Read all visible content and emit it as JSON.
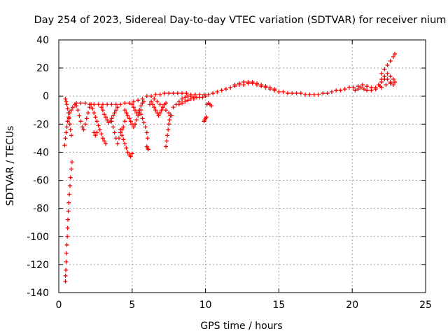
{
  "chart_data": {
    "type": "scatter",
    "title": "Day 254 of 2023, Sidereal Day-to-day VTEC variation (SDTVAR) for receiver nium",
    "xlabel": "GPS time / hours",
    "ylabel": "SDTVAR / TECUs",
    "xlim": [
      0,
      25
    ],
    "ylim": [
      -140,
      40
    ],
    "xticks": [
      0,
      5,
      10,
      15,
      20,
      25
    ],
    "yticks": [
      -140,
      -120,
      -100,
      -80,
      -60,
      -40,
      -20,
      0,
      20,
      40
    ],
    "grid": true,
    "marker": "+",
    "series": [
      {
        "name": "SDTVAR",
        "color": "#ff0000",
        "points": [
          [
            0.45,
            -132
          ],
          [
            0.46,
            -128
          ],
          [
            0.48,
            -124
          ],
          [
            0.5,
            -118
          ],
          [
            0.52,
            -112
          ],
          [
            0.55,
            -106
          ],
          [
            0.58,
            -100
          ],
          [
            0.6,
            -94
          ],
          [
            0.62,
            -88
          ],
          [
            0.65,
            -82
          ],
          [
            0.68,
            -76
          ],
          [
            0.72,
            -70
          ],
          [
            0.76,
            -64
          ],
          [
            0.8,
            -58
          ],
          [
            0.85,
            -52
          ],
          [
            0.9,
            -47
          ],
          [
            0.4,
            -35
          ],
          [
            0.45,
            -30
          ],
          [
            0.5,
            -26
          ],
          [
            0.55,
            -22
          ],
          [
            0.6,
            -18
          ],
          [
            0.68,
            -15
          ],
          [
            0.75,
            -12
          ],
          [
            0.85,
            -10
          ],
          [
            0.95,
            -8
          ],
          [
            0.45,
            -2
          ],
          [
            0.5,
            -4
          ],
          [
            0.55,
            -6
          ],
          [
            0.6,
            -9
          ],
          [
            0.65,
            -12
          ],
          [
            0.7,
            -16
          ],
          [
            0.75,
            -20
          ],
          [
            0.8,
            -24
          ],
          [
            0.85,
            -28
          ],
          [
            1.1,
            -6
          ],
          [
            1.2,
            -7
          ],
          [
            1.3,
            -10
          ],
          [
            1.4,
            -14
          ],
          [
            1.5,
            -18
          ],
          [
            1.6,
            -22
          ],
          [
            1.7,
            -24
          ],
          [
            1.8,
            -20
          ],
          [
            1.9,
            -16
          ],
          [
            2.0,
            -12
          ],
          [
            2.1,
            -8
          ],
          [
            1.2,
            -5
          ],
          [
            1.5,
            -5
          ],
          [
            1.8,
            -5
          ],
          [
            2.1,
            -6
          ],
          [
            2.4,
            -6
          ],
          [
            2.7,
            -6
          ],
          [
            3.0,
            -6
          ],
          [
            3.3,
            -6
          ],
          [
            3.6,
            -6
          ],
          [
            3.9,
            -6
          ],
          [
            4.2,
            -6
          ],
          [
            4.5,
            -5
          ],
          [
            4.8,
            -5
          ],
          [
            5.1,
            -4
          ],
          [
            5.4,
            -3
          ],
          [
            5.7,
            -2
          ],
          [
            2.2,
            -6
          ],
          [
            2.3,
            -9
          ],
          [
            2.4,
            -12
          ],
          [
            2.5,
            -15
          ],
          [
            2.6,
            -18
          ],
          [
            2.7,
            -21
          ],
          [
            2.8,
            -24
          ],
          [
            2.9,
            -27
          ],
          [
            3.0,
            -30
          ],
          [
            3.1,
            -32
          ],
          [
            3.2,
            -34
          ],
          [
            2.4,
            -26
          ],
          [
            2.5,
            -28
          ],
          [
            2.6,
            -26
          ],
          [
            2.9,
            -8
          ],
          [
            3.0,
            -10
          ],
          [
            3.1,
            -13
          ],
          [
            3.2,
            -15
          ],
          [
            3.3,
            -17
          ],
          [
            3.4,
            -19
          ],
          [
            3.5,
            -18
          ],
          [
            3.6,
            -16
          ],
          [
            3.7,
            -14
          ],
          [
            3.8,
            -12
          ],
          [
            3.9,
            -10
          ],
          [
            4.0,
            -8
          ],
          [
            3.6,
            -18
          ],
          [
            3.7,
            -22
          ],
          [
            3.8,
            -26
          ],
          [
            3.9,
            -30
          ],
          [
            4.0,
            -34
          ],
          [
            4.1,
            -30
          ],
          [
            4.2,
            -26
          ],
          [
            4.3,
            -24
          ],
          [
            4.4,
            -22
          ],
          [
            4.5,
            -18
          ],
          [
            4.2,
            -24
          ],
          [
            4.3,
            -28
          ],
          [
            4.4,
            -31
          ],
          [
            4.5,
            -34
          ],
          [
            4.6,
            -37
          ],
          [
            4.7,
            -40
          ],
          [
            4.8,
            -42
          ],
          [
            4.9,
            -43
          ],
          [
            5.0,
            -41
          ],
          [
            4.5,
            -10
          ],
          [
            4.6,
            -12
          ],
          [
            4.7,
            -14
          ],
          [
            4.8,
            -16
          ],
          [
            4.9,
            -18
          ],
          [
            5.0,
            -20
          ],
          [
            5.1,
            -22
          ],
          [
            5.2,
            -20
          ],
          [
            5.3,
            -17
          ],
          [
            5.4,
            -14
          ],
          [
            5.5,
            -12
          ],
          [
            5.6,
            -10
          ],
          [
            5.5,
            -10
          ],
          [
            5.6,
            -13
          ],
          [
            5.7,
            -16
          ],
          [
            5.8,
            -19
          ],
          [
            5.9,
            -22
          ],
          [
            6.0,
            -26
          ],
          [
            6.05,
            -30
          ],
          [
            5.0,
            -6
          ],
          [
            5.1,
            -8
          ],
          [
            5.2,
            -10
          ],
          [
            5.3,
            -12
          ],
          [
            5.4,
            -12
          ],
          [
            5.5,
            -10
          ],
          [
            5.6,
            -7
          ],
          [
            5.7,
            -5
          ],
          [
            5.8,
            -4
          ],
          [
            6.0,
            -36
          ],
          [
            6.05,
            -37
          ],
          [
            6.1,
            -38
          ],
          [
            6.2,
            -6
          ],
          [
            6.3,
            -4
          ],
          [
            6.4,
            -6
          ],
          [
            6.5,
            -8
          ],
          [
            6.6,
            -10
          ],
          [
            6.7,
            -12
          ],
          [
            6.8,
            -14
          ],
          [
            6.9,
            -12
          ],
          [
            7.0,
            -10
          ],
          [
            7.1,
            -8
          ],
          [
            7.2,
            -6
          ],
          [
            7.3,
            -5
          ],
          [
            6.5,
            -2
          ],
          [
            6.7,
            -4
          ],
          [
            6.9,
            -6
          ],
          [
            7.1,
            -8
          ],
          [
            7.3,
            -10
          ],
          [
            7.5,
            -12
          ],
          [
            7.7,
            -14
          ],
          [
            7.3,
            -36
          ],
          [
            7.35,
            -32
          ],
          [
            7.4,
            -28
          ],
          [
            7.45,
            -24
          ],
          [
            7.5,
            -20
          ],
          [
            7.55,
            -17
          ],
          [
            7.6,
            -14
          ],
          [
            6.0,
            0
          ],
          [
            6.3,
            0
          ],
          [
            6.6,
            1
          ],
          [
            6.9,
            1
          ],
          [
            7.2,
            2
          ],
          [
            7.5,
            2
          ],
          [
            7.8,
            2
          ],
          [
            8.1,
            2
          ],
          [
            8.4,
            2
          ],
          [
            8.7,
            2
          ],
          [
            9.0,
            1
          ],
          [
            9.3,
            1
          ],
          [
            9.6,
            1
          ],
          [
            9.9,
            1
          ],
          [
            7.8,
            -8
          ],
          [
            8.0,
            -6
          ],
          [
            8.2,
            -4
          ],
          [
            8.4,
            -2
          ],
          [
            8.6,
            -1
          ],
          [
            8.8,
            0
          ],
          [
            9.0,
            0
          ],
          [
            9.2,
            -1
          ],
          [
            8.2,
            -6
          ],
          [
            8.4,
            -5
          ],
          [
            8.6,
            -4
          ],
          [
            8.8,
            -3
          ],
          [
            9.0,
            -2
          ],
          [
            9.2,
            -2
          ],
          [
            9.4,
            -1
          ],
          [
            9.6,
            -1
          ],
          [
            9.8,
            -1
          ],
          [
            10.0,
            0
          ],
          [
            9.9,
            -18
          ],
          [
            9.95,
            -17
          ],
          [
            10.0,
            -16
          ],
          [
            10.05,
            -15
          ],
          [
            10.1,
            -6
          ],
          [
            10.2,
            -5
          ],
          [
            10.3,
            -6
          ],
          [
            10.4,
            -7
          ],
          [
            10.2,
            1
          ],
          [
            10.5,
            2
          ],
          [
            10.8,
            3
          ],
          [
            11.1,
            4
          ],
          [
            11.4,
            5
          ],
          [
            11.7,
            6
          ],
          [
            12.0,
            7
          ],
          [
            12.3,
            8
          ],
          [
            12.6,
            8
          ],
          [
            12.9,
            9
          ],
          [
            13.2,
            9
          ],
          [
            13.5,
            8
          ],
          [
            13.8,
            7
          ],
          [
            14.1,
            6
          ],
          [
            14.4,
            5
          ],
          [
            14.7,
            4
          ],
          [
            15.0,
            3
          ],
          [
            15.3,
            3
          ],
          [
            15.6,
            2
          ],
          [
            15.9,
            2
          ],
          [
            16.2,
            2
          ],
          [
            16.5,
            2
          ],
          [
            16.8,
            1
          ],
          [
            17.1,
            1
          ],
          [
            17.4,
            1
          ],
          [
            17.7,
            1
          ],
          [
            18.0,
            2
          ],
          [
            18.3,
            2
          ],
          [
            18.6,
            3
          ],
          [
            18.9,
            4
          ],
          [
            19.2,
            4
          ],
          [
            19.5,
            5
          ],
          [
            19.8,
            6
          ],
          [
            20.1,
            6
          ],
          [
            20.4,
            7
          ],
          [
            20.7,
            8
          ],
          [
            21.0,
            7
          ],
          [
            21.3,
            6
          ],
          [
            21.6,
            6
          ],
          [
            21.9,
            7
          ],
          [
            12.0,
            8
          ],
          [
            12.3,
            9
          ],
          [
            12.6,
            10
          ],
          [
            12.9,
            10
          ],
          [
            13.2,
            10
          ],
          [
            13.5,
            9
          ],
          [
            13.8,
            8
          ],
          [
            14.1,
            7
          ],
          [
            14.4,
            6
          ],
          [
            14.7,
            5
          ],
          [
            20.2,
            4
          ],
          [
            20.4,
            5
          ],
          [
            20.6,
            6
          ],
          [
            20.8,
            5
          ],
          [
            21.0,
            4
          ],
          [
            21.3,
            4
          ],
          [
            21.6,
            5
          ],
          [
            21.6,
            5
          ],
          [
            21.8,
            8
          ],
          [
            22.0,
            12
          ],
          [
            22.2,
            14
          ],
          [
            22.4,
            16
          ],
          [
            22.6,
            14
          ],
          [
            22.8,
            12
          ],
          [
            22.0,
            10
          ],
          [
            22.2,
            12
          ],
          [
            22.4,
            12
          ],
          [
            22.6,
            10
          ],
          [
            22.8,
            8
          ],
          [
            22.0,
            16
          ],
          [
            22.2,
            19
          ],
          [
            22.4,
            22
          ],
          [
            22.6,
            25
          ],
          [
            22.8,
            28
          ],
          [
            22.9,
            30
          ],
          [
            22.0,
            6
          ],
          [
            22.3,
            8
          ],
          [
            22.6,
            9
          ],
          [
            22.9,
            10
          ]
        ]
      }
    ]
  }
}
